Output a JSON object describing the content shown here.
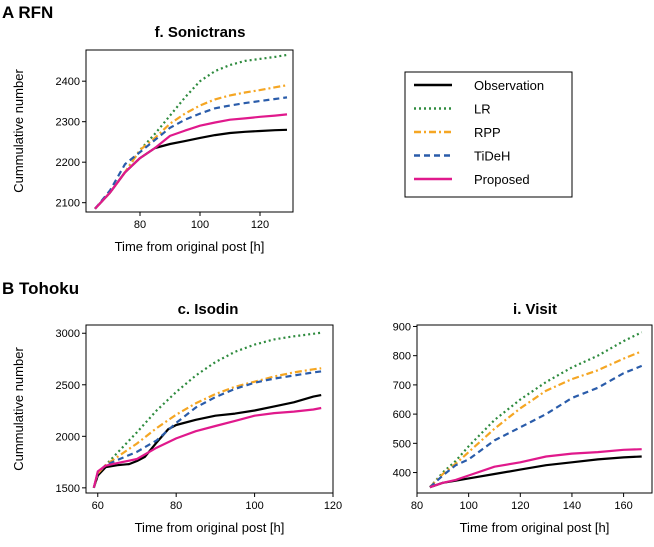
{
  "sections": [
    {
      "label": "A  RFN"
    },
    {
      "label": "B  Tohoku"
    }
  ],
  "legend": {
    "entries": [
      "Observation",
      "LR",
      "RPP",
      "TiDeH",
      "Proposed"
    ]
  },
  "styles": {
    "Observation": {
      "color": "#000000",
      "dash": ""
    },
    "LR": {
      "color": "#2e8b3e",
      "dash": "2,3"
    },
    "RPP": {
      "color": "#f5a623",
      "dash": "7,3,2,3"
    },
    "TiDeH": {
      "color": "#2a5caa",
      "dash": "6,4"
    },
    "Proposed": {
      "color": "#e0198c",
      "dash": ""
    }
  },
  "chart_data": [
    {
      "type": "line",
      "title": "f. Sonictrans",
      "xlabel": "Time from original post [h]",
      "ylabel": "Cummulative number",
      "xlim": [
        62,
        131
      ],
      "ylim": [
        2077,
        2477
      ],
      "xticks": [
        80,
        100,
        120
      ],
      "yticks": [
        2100,
        2200,
        2300,
        2400
      ],
      "series": [
        {
          "name": "Observation",
          "x": [
            65,
            70,
            75,
            80,
            85,
            90,
            95,
            100,
            105,
            110,
            115,
            120,
            125,
            129
          ],
          "values": [
            2085,
            2125,
            2175,
            2210,
            2235,
            2245,
            2252,
            2260,
            2267,
            2272,
            2275,
            2277,
            2279,
            2280
          ]
        },
        {
          "name": "LR",
          "x": [
            65,
            70,
            75,
            80,
            85,
            90,
            95,
            100,
            105,
            110,
            115,
            120,
            125,
            129
          ],
          "values": [
            2085,
            2125,
            2175,
            2230,
            2270,
            2315,
            2360,
            2400,
            2425,
            2440,
            2450,
            2455,
            2460,
            2465
          ]
        },
        {
          "name": "RPP",
          "x": [
            65,
            70,
            75,
            80,
            85,
            90,
            95,
            100,
            105,
            110,
            115,
            120,
            125,
            129
          ],
          "values": [
            2085,
            2125,
            2175,
            2230,
            2260,
            2295,
            2320,
            2340,
            2355,
            2365,
            2372,
            2378,
            2385,
            2390
          ]
        },
        {
          "name": "TiDeH",
          "x": [
            65,
            70,
            75,
            80,
            85,
            90,
            95,
            100,
            105,
            110,
            115,
            120,
            125,
            129
          ],
          "values": [
            2085,
            2130,
            2195,
            2225,
            2255,
            2285,
            2305,
            2320,
            2333,
            2340,
            2346,
            2351,
            2356,
            2360
          ]
        },
        {
          "name": "Proposed",
          "x": [
            65,
            70,
            75,
            80,
            85,
            90,
            95,
            100,
            105,
            110,
            115,
            120,
            125,
            129
          ],
          "values": [
            2085,
            2125,
            2175,
            2210,
            2235,
            2265,
            2278,
            2290,
            2298,
            2305,
            2308,
            2312,
            2315,
            2318
          ]
        }
      ]
    },
    {
      "type": "line",
      "title": "c. Isodin",
      "xlabel": "Time from original post [h]",
      "ylabel": "Cummulative number",
      "xlim": [
        57,
        120
      ],
      "ylim": [
        1450,
        3080
      ],
      "xticks": [
        60,
        80,
        100,
        120
      ],
      "yticks": [
        1500,
        2000,
        2500,
        3000
      ],
      "series": [
        {
          "name": "Observation",
          "x": [
            59,
            60,
            62,
            65,
            68,
            70,
            72,
            75,
            78,
            80,
            85,
            90,
            95,
            100,
            105,
            110,
            115,
            117
          ],
          "values": [
            1500,
            1620,
            1700,
            1720,
            1730,
            1760,
            1800,
            1940,
            2070,
            2110,
            2160,
            2200,
            2220,
            2250,
            2290,
            2330,
            2385,
            2400
          ]
        },
        {
          "name": "LR",
          "x": [
            59,
            60,
            62,
            65,
            70,
            75,
            80,
            85,
            90,
            95,
            100,
            105,
            110,
            115,
            117
          ],
          "values": [
            1500,
            1640,
            1720,
            1840,
            2040,
            2250,
            2430,
            2590,
            2720,
            2820,
            2890,
            2940,
            2970,
            2995,
            3005
          ]
        },
        {
          "name": "RPP",
          "x": [
            59,
            60,
            62,
            65,
            70,
            75,
            80,
            85,
            90,
            95,
            100,
            105,
            110,
            115,
            117
          ],
          "values": [
            1500,
            1640,
            1720,
            1800,
            1930,
            2080,
            2210,
            2320,
            2410,
            2480,
            2530,
            2580,
            2620,
            2650,
            2660
          ]
        },
        {
          "name": "TiDeH",
          "x": [
            59,
            60,
            62,
            65,
            70,
            75,
            80,
            85,
            90,
            95,
            100,
            105,
            110,
            115,
            117
          ],
          "values": [
            1500,
            1650,
            1720,
            1770,
            1850,
            1960,
            2130,
            2280,
            2380,
            2460,
            2520,
            2560,
            2590,
            2620,
            2630
          ]
        },
        {
          "name": "Proposed",
          "x": [
            59,
            60,
            62,
            65,
            70,
            75,
            80,
            85,
            90,
            95,
            100,
            105,
            110,
            115,
            117
          ],
          "values": [
            1500,
            1660,
            1715,
            1740,
            1780,
            1890,
            1980,
            2050,
            2100,
            2150,
            2200,
            2225,
            2240,
            2260,
            2275
          ]
        }
      ]
    },
    {
      "type": "line",
      "title": "i. Visit",
      "xlabel": "Time from original post [h]",
      "ylabel": "",
      "xlim": [
        80,
        171
      ],
      "ylim": [
        330,
        905
      ],
      "xticks": [
        80,
        100,
        120,
        140,
        160
      ],
      "yticks": [
        400,
        500,
        600,
        700,
        800,
        900
      ],
      "series": [
        {
          "name": "Observation",
          "x": [
            85,
            90,
            95,
            100,
            110,
            120,
            130,
            140,
            150,
            160,
            167
          ],
          "values": [
            350,
            365,
            372,
            380,
            395,
            410,
            425,
            435,
            445,
            452,
            455
          ]
        },
        {
          "name": "LR",
          "x": [
            85,
            90,
            95,
            100,
            110,
            120,
            130,
            140,
            150,
            160,
            167
          ],
          "values": [
            350,
            400,
            440,
            490,
            580,
            650,
            710,
            760,
            800,
            850,
            880
          ]
        },
        {
          "name": "RPP",
          "x": [
            85,
            90,
            95,
            100,
            110,
            120,
            130,
            140,
            150,
            160,
            167
          ],
          "values": [
            350,
            395,
            430,
            470,
            550,
            620,
            680,
            720,
            750,
            790,
            815
          ]
        },
        {
          "name": "TiDeH",
          "x": [
            85,
            90,
            95,
            100,
            110,
            120,
            130,
            140,
            150,
            160,
            167
          ],
          "values": [
            350,
            390,
            425,
            445,
            510,
            555,
            600,
            655,
            690,
            740,
            765
          ]
        },
        {
          "name": "Proposed",
          "x": [
            85,
            90,
            95,
            100,
            110,
            120,
            130,
            140,
            150,
            160,
            167
          ],
          "values": [
            350,
            365,
            375,
            390,
            420,
            435,
            455,
            465,
            470,
            478,
            480
          ]
        }
      ]
    }
  ]
}
